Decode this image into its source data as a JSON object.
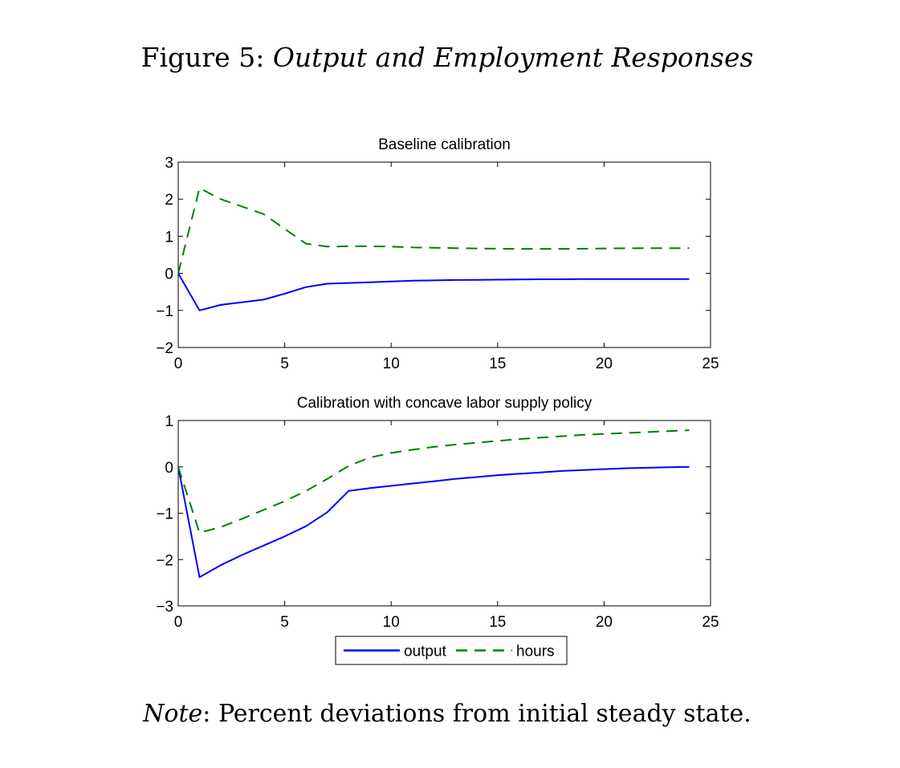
{
  "figure": {
    "label": "Figure 5:",
    "title": "Output and Employment Responses",
    "note_label": "Note",
    "note_text": ": Percent deviations from initial steady state."
  },
  "chart_data": [
    {
      "type": "line",
      "title": "Baseline calibration",
      "xlabel": "",
      "ylabel": "",
      "xlim": [
        0,
        25
      ],
      "ylim": [
        -2,
        3
      ],
      "xticks": [
        0,
        5,
        10,
        15,
        20,
        25
      ],
      "yticks": [
        -2,
        -1,
        0,
        1,
        2,
        3
      ],
      "grid": false,
      "series": [
        {
          "name": "output",
          "color": "#0000ff",
          "style": "solid",
          "x": [
            0,
            1,
            2,
            3,
            4,
            5,
            6,
            7,
            8,
            9,
            10,
            11,
            12,
            13,
            14,
            15,
            16,
            17,
            18,
            19,
            20,
            21,
            22,
            23,
            24
          ],
          "y": [
            0,
            -1.0,
            -0.85,
            -0.78,
            -0.71,
            -0.55,
            -0.37,
            -0.28,
            -0.26,
            -0.24,
            -0.22,
            -0.2,
            -0.19,
            -0.18,
            -0.175,
            -0.17,
            -0.165,
            -0.16,
            -0.16,
            -0.155,
            -0.155,
            -0.155,
            -0.155,
            -0.155,
            -0.155
          ]
        },
        {
          "name": "hours",
          "color": "#007f00",
          "style": "dashed",
          "x": [
            0,
            1,
            2,
            3,
            4,
            5,
            6,
            7,
            8,
            9,
            10,
            11,
            12,
            13,
            14,
            15,
            16,
            17,
            18,
            19,
            20,
            21,
            22,
            23,
            24
          ],
          "y": [
            0,
            2.3,
            2.0,
            1.8,
            1.6,
            1.2,
            0.8,
            0.72,
            0.73,
            0.73,
            0.72,
            0.7,
            0.69,
            0.68,
            0.67,
            0.665,
            0.66,
            0.66,
            0.66,
            0.665,
            0.67,
            0.675,
            0.68,
            0.68,
            0.68
          ]
        }
      ]
    },
    {
      "type": "line",
      "title": "Calibration with concave labor supply policy",
      "xlabel": "",
      "ylabel": "",
      "xlim": [
        0,
        25
      ],
      "ylim": [
        -3,
        1
      ],
      "xticks": [
        0,
        5,
        10,
        15,
        20,
        25
      ],
      "yticks": [
        -3,
        -2,
        -1,
        0,
        1
      ],
      "grid": false,
      "legend": {
        "placement": "bottom-center",
        "entries": [
          "output",
          "hours"
        ]
      },
      "series": [
        {
          "name": "output",
          "color": "#0000ff",
          "style": "solid",
          "x": [
            0,
            1,
            2,
            3,
            4,
            5,
            6,
            7,
            8,
            9,
            10,
            11,
            12,
            13,
            14,
            15,
            16,
            17,
            18,
            19,
            20,
            21,
            22,
            23,
            24
          ],
          "y": [
            0,
            -2.38,
            -2.12,
            -1.9,
            -1.7,
            -1.5,
            -1.28,
            -0.98,
            -0.52,
            -0.46,
            -0.41,
            -0.36,
            -0.31,
            -0.26,
            -0.22,
            -0.18,
            -0.15,
            -0.12,
            -0.09,
            -0.07,
            -0.05,
            -0.03,
            -0.02,
            -0.01,
            0.0
          ]
        },
        {
          "name": "hours",
          "color": "#007f00",
          "style": "dashed",
          "x": [
            0,
            1,
            2,
            3,
            4,
            5,
            6,
            7,
            8,
            9,
            10,
            11,
            12,
            13,
            14,
            15,
            16,
            17,
            18,
            19,
            20,
            21,
            22,
            23,
            24
          ],
          "y": [
            0,
            -1.42,
            -1.3,
            -1.12,
            -0.93,
            -0.74,
            -0.52,
            -0.26,
            0.02,
            0.2,
            0.3,
            0.37,
            0.43,
            0.48,
            0.52,
            0.56,
            0.6,
            0.63,
            0.66,
            0.69,
            0.71,
            0.73,
            0.75,
            0.77,
            0.79
          ]
        }
      ]
    }
  ]
}
